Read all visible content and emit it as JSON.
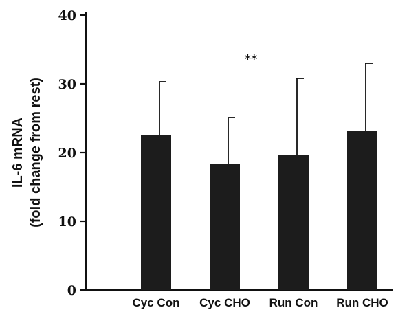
{
  "chart_data": {
    "type": "bar",
    "categories": [
      "Cyc Con",
      "Cyc CHO",
      "Run Con",
      "Run CHO"
    ],
    "values": [
      22.5,
      18.3,
      19.7,
      23.2
    ],
    "error_upper": [
      30.3,
      25.1,
      30.8,
      33.0
    ],
    "ylabel_line1": "IL-6 mRNA",
    "ylabel_line2": "(fold change from rest)",
    "ylim": [
      0,
      40
    ],
    "yticks": [
      0,
      10,
      20,
      30,
      40
    ],
    "annotation": "**",
    "grid": false,
    "bar_color": "#1c1c1c",
    "axis_color": "#111111"
  }
}
